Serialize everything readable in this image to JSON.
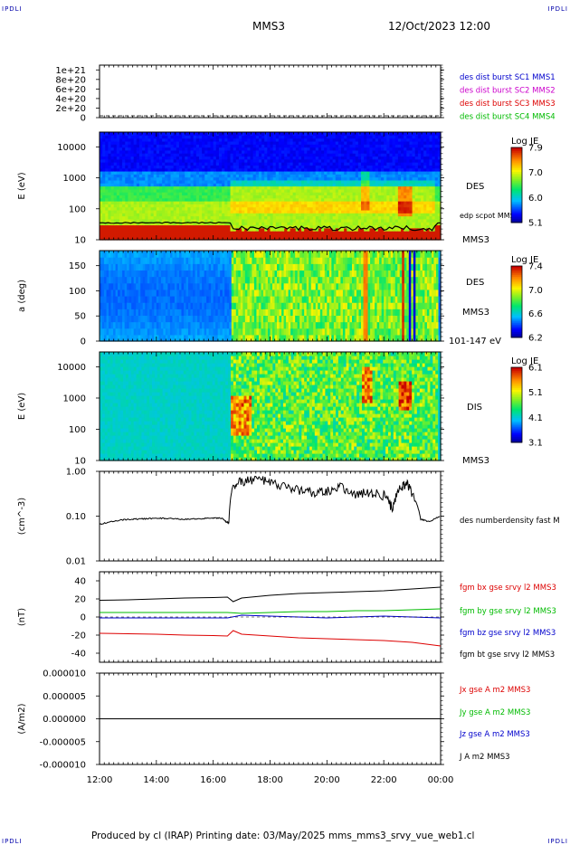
{
  "corner_marks": {
    "tl": "IPDLI",
    "tr": "IPDLI",
    "bl": "IPDLI",
    "br": "IPDLI"
  },
  "header": {
    "spacecraft": "MMS3",
    "datetime": "12/Oct/2023 12:00"
  },
  "footer": "Produced by cl (IRAP)   Printing date: 03/May/2025   mms_mms3_srvy_vue_web1.cl",
  "colors": {
    "bx": "#dd0000",
    "by": "#00bb00",
    "bz": "#0000cc",
    "bt": "#000000",
    "c1": "#0000cc",
    "c2": "#cc00cc",
    "c3": "#dd0000",
    "c4": "#00bb00"
  },
  "time_axis": {
    "labels": [
      "12:00",
      "14:00",
      "16:00",
      "18:00",
      "20:00",
      "22:00",
      "00:00"
    ],
    "start_hours": 12,
    "end_hours": 24
  },
  "chart_data": [
    {
      "id": "burst",
      "type": "line",
      "ylim": [
        0,
        1.1e+21
      ],
      "yticks": [
        {
          "v": 0,
          "label": "0"
        },
        {
          "v": 2e+20,
          "label": "2e+20"
        },
        {
          "v": 4e+20,
          "label": "4e+20"
        },
        {
          "v": 6e+20,
          "label": "6e+20"
        },
        {
          "v": 8e+20,
          "label": "8e+20"
        },
        {
          "v": 1e+21,
          "label": "1e+21"
        }
      ],
      "ylabel": "",
      "legend": [
        {
          "text": "des dist burst SC1 MMS1",
          "color": "#0000cc"
        },
        {
          "text": "des dist burst SC2 MMS2",
          "color": "#cc00cc"
        },
        {
          "text": "des dist burst SC3 MMS3",
          "color": "#dd0000"
        },
        {
          "text": "des dist burst SC4 MMS4",
          "color": "#00bb00"
        }
      ]
    },
    {
      "id": "des_energy",
      "type": "heatmap",
      "ylabel": "E (eV)",
      "yscale": "log",
      "ylim": [
        10,
        30000
      ],
      "yticks": [
        {
          "v": 10,
          "label": "10"
        },
        {
          "v": 100,
          "label": "100"
        },
        {
          "v": 1000,
          "label": "1000"
        },
        {
          "v": 10000,
          "label": "10000"
        }
      ],
      "instrument": "DES",
      "spacecraft": "MMS3",
      "overlay_label": "edp scpot MMS3",
      "colorbar": {
        "title": "Log JE",
        "ticks": [
          "7.9",
          "7.0",
          "6.0",
          "5.1"
        ],
        "range": [
          5.1,
          7.9
        ]
      }
    },
    {
      "id": "des_pitch",
      "type": "heatmap",
      "ylabel": "a (deg)",
      "ylim": [
        0,
        180
      ],
      "yticks": [
        {
          "v": 0,
          "label": "0"
        },
        {
          "v": 50,
          "label": "50"
        },
        {
          "v": 100,
          "label": "100"
        },
        {
          "v": 150,
          "label": "150"
        }
      ],
      "instrument": "DES",
      "spacecraft": "MMS3",
      "energy_range": "101-147 eV",
      "colorbar": {
        "title": "Log JE",
        "ticks": [
          "7.4",
          "7.0",
          "6.6",
          "6.2"
        ],
        "range": [
          6.2,
          7.4
        ]
      }
    },
    {
      "id": "dis_energy",
      "type": "heatmap",
      "ylabel": "E (eV)",
      "yscale": "log",
      "ylim": [
        10,
        30000
      ],
      "yticks": [
        {
          "v": 10,
          "label": "10"
        },
        {
          "v": 100,
          "label": "100"
        },
        {
          "v": 1000,
          "label": "1000"
        },
        {
          "v": 10000,
          "label": "10000"
        }
      ],
      "instrument": "DIS",
      "spacecraft": "MMS3",
      "colorbar": {
        "title": "Log JE",
        "ticks": [
          "6.1",
          "5.1",
          "4.1",
          "3.1"
        ],
        "range": [
          3.1,
          6.1
        ]
      }
    },
    {
      "id": "density",
      "type": "line",
      "ylabel": "(cm^-3)",
      "yscale": "log",
      "ylim": [
        0.01,
        1.0
      ],
      "yticks": [
        {
          "v": 0.01,
          "label": "0.01"
        },
        {
          "v": 0.1,
          "label": "0.10"
        },
        {
          "v": 1.0,
          "label": "1.00"
        }
      ],
      "series": [
        {
          "name": "des numberdensity fast M",
          "color": "#000000",
          "x": [
            12.0,
            12.5,
            13.0,
            13.5,
            14.0,
            14.5,
            15.0,
            15.5,
            16.0,
            16.3,
            16.45,
            16.55,
            16.7,
            17.0,
            17.5,
            18.0,
            18.5,
            19.0,
            19.5,
            20.0,
            20.5,
            21.0,
            21.5,
            22.0,
            22.3,
            22.6,
            22.8,
            23.0,
            23.3,
            23.6,
            24.0
          ],
          "y": [
            0.065,
            0.078,
            0.085,
            0.087,
            0.09,
            0.088,
            0.085,
            0.088,
            0.09,
            0.09,
            0.075,
            0.07,
            0.5,
            0.6,
            0.7,
            0.55,
            0.45,
            0.4,
            0.35,
            0.38,
            0.45,
            0.3,
            0.35,
            0.3,
            0.15,
            0.45,
            0.55,
            0.3,
            0.085,
            0.075,
            0.1
          ]
        }
      ]
    },
    {
      "id": "fgm",
      "type": "line",
      "ylabel": "(nT)",
      "ylim": [
        -50,
        50
      ],
      "yticks": [
        {
          "v": -40,
          "label": "-40"
        },
        {
          "v": -20,
          "label": "-20"
        },
        {
          "v": 0,
          "label": "0"
        },
        {
          "v": 20,
          "label": "20"
        },
        {
          "v": 40,
          "label": "40"
        }
      ],
      "series": [
        {
          "name": "fgm bx gse srvy l2 MMS3",
          "color": "#dd0000",
          "x": [
            12.0,
            13.0,
            14.0,
            15.0,
            16.0,
            16.5,
            16.7,
            17.0,
            18.0,
            19.0,
            20.0,
            21.0,
            22.0,
            23.0,
            24.0
          ],
          "y": [
            -18,
            -18.5,
            -19,
            -20,
            -20.5,
            -21,
            -15,
            -19,
            -21,
            -23,
            -24,
            -25,
            -26,
            -28,
            -32
          ]
        },
        {
          "name": "fgm by gse srvy l2 MMS3",
          "color": "#00bb00",
          "x": [
            12.0,
            14.0,
            16.0,
            16.5,
            17.0,
            18.0,
            19.0,
            20.0,
            21.0,
            22.0,
            23.0,
            24.0
          ],
          "y": [
            5,
            5,
            5,
            5,
            4,
            5,
            6,
            6,
            7,
            7,
            8,
            9
          ]
        },
        {
          "name": "fgm bz gse srvy l2 MMS3",
          "color": "#0000cc",
          "x": [
            12.0,
            14.0,
            16.0,
            16.5,
            17.0,
            18.0,
            19.0,
            20.0,
            21.0,
            22.0,
            23.0,
            24.0
          ],
          "y": [
            -1,
            -1,
            -1,
            -1,
            2,
            1,
            0,
            -1,
            0,
            1,
            0,
            -1
          ]
        },
        {
          "name": "fgm bt gse srvy l2 MMS3",
          "color": "#000000",
          "x": [
            12.0,
            13.0,
            14.0,
            15.0,
            16.0,
            16.5,
            16.7,
            17.0,
            18.0,
            19.0,
            20.0,
            21.0,
            22.0,
            23.0,
            24.0
          ],
          "y": [
            18.5,
            19,
            20,
            21,
            21.5,
            22,
            17,
            21,
            24,
            26,
            27,
            28,
            29,
            31,
            33
          ]
        }
      ]
    },
    {
      "id": "current",
      "type": "line",
      "ylabel": "(A/m2)",
      "ylim": [
        -1e-05,
        1e-05
      ],
      "yticks": [
        {
          "v": -1e-05,
          "label": "-0.000010"
        },
        {
          "v": -5e-06,
          "label": "-0.000005"
        },
        {
          "v": 0,
          "label": "0.000000"
        },
        {
          "v": 5e-06,
          "label": "0.000005"
        },
        {
          "v": 1e-05,
          "label": "0.000010"
        }
      ],
      "series": [
        {
          "name": "Jx gse A m2 MMS3",
          "color": "#dd0000",
          "x": [
            12.0,
            24.0
          ],
          "y": [
            0,
            0
          ]
        },
        {
          "name": "Jy gse A m2 MMS3",
          "color": "#00bb00",
          "x": [
            12.0,
            24.0
          ],
          "y": [
            0,
            0
          ]
        },
        {
          "name": "Jz gse A m2 MMS3",
          "color": "#0000cc",
          "x": [
            12.0,
            24.0
          ],
          "y": [
            0,
            0
          ]
        },
        {
          "name": "J A m2 MMS3",
          "color": "#000000",
          "x": [
            12.0,
            24.0
          ],
          "y": [
            0,
            0
          ]
        }
      ]
    }
  ]
}
